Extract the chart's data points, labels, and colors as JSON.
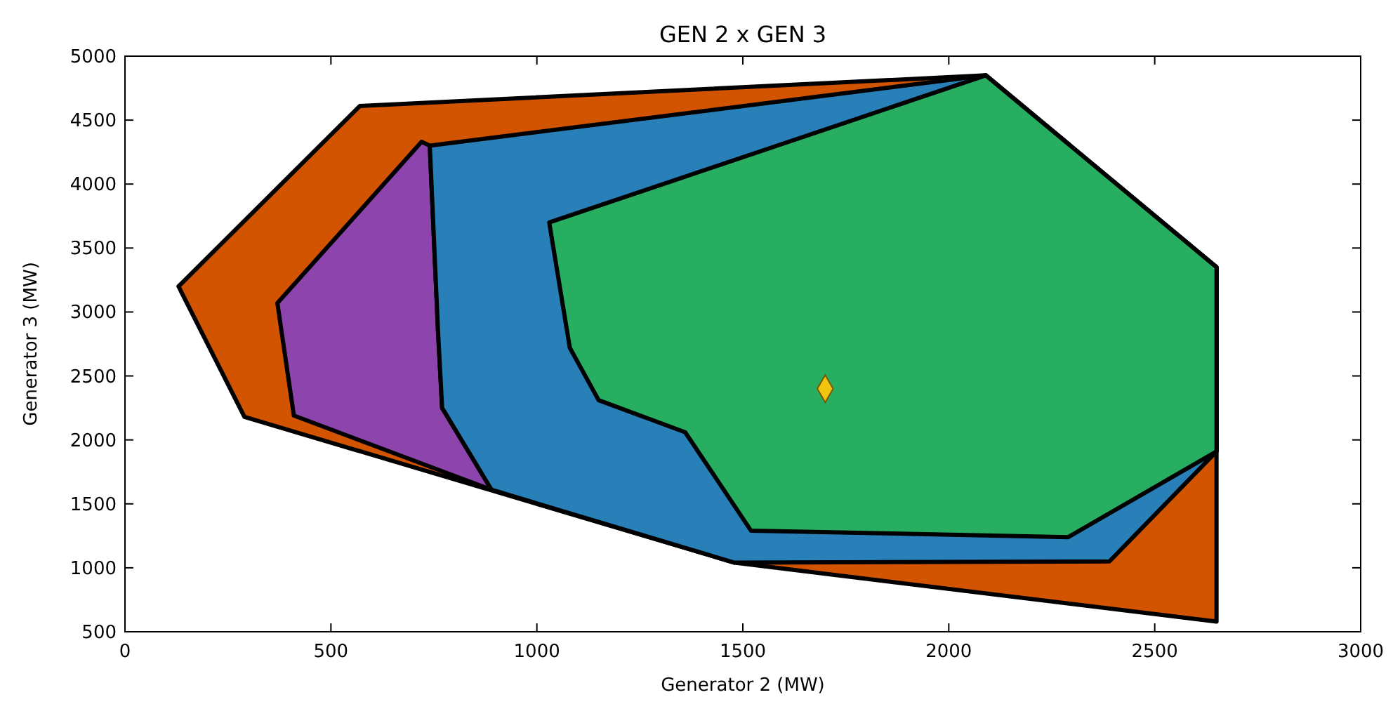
{
  "chart_data": {
    "type": "area",
    "title": "GEN 2 x GEN 3",
    "xlabel": "Generator 2 (MW)",
    "ylabel": "Generator 3 (MW)",
    "xlim": [
      0,
      3000
    ],
    "ylim": [
      500,
      5000
    ],
    "xticks": [
      0,
      500,
      1000,
      1500,
      2000,
      2500,
      3000
    ],
    "yticks": [
      500,
      1000,
      1500,
      2000,
      2500,
      3000,
      3500,
      4000,
      4500,
      5000
    ],
    "grid": false,
    "series": [
      {
        "color": "#d35400",
        "x": [
          570,
          2090,
          2650,
          2650,
          1480,
          290,
          130
        ],
        "values": [
          4610,
          4850,
          3350,
          580,
          1040,
          2180,
          3200
        ]
      },
      {
        "color": "#8e44ad",
        "x": [
          720,
          370,
          410,
          890,
          770,
          760,
          740
        ],
        "values": [
          4330,
          3070,
          2190,
          1610,
          2250,
          2850,
          4300
        ]
      },
      {
        "color": "#2980b9",
        "x": [
          740,
          2090,
          2650,
          2650,
          2390,
          1480,
          890,
          770,
          760
        ],
        "values": [
          4300,
          4850,
          3350,
          1910,
          1050,
          1040,
          1610,
          2250,
          2850
        ]
      },
      {
        "color": "#27ae60",
        "x": [
          1030,
          2090,
          2650,
          2650,
          2290,
          1520,
          1360,
          1150,
          1080
        ],
        "values": [
          3700,
          4850,
          3350,
          1910,
          1240,
          1290,
          2060,
          2310,
          2720
        ]
      },
      {
        "type": "scatter",
        "color": "#f1c40f",
        "marker": "diamond",
        "x": [
          1700
        ],
        "values": [
          2400
        ]
      }
    ]
  }
}
